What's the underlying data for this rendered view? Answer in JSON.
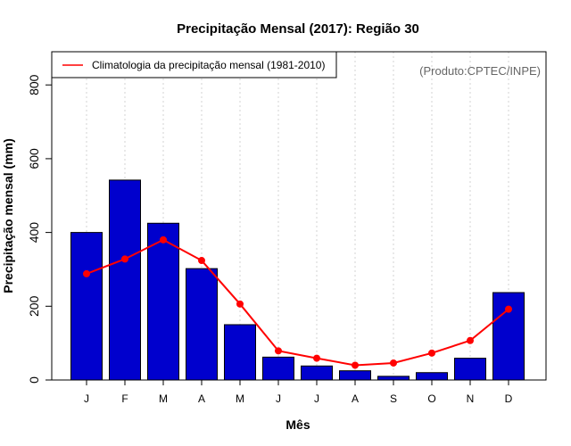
{
  "chart_data": {
    "type": "bar",
    "title": "Precipitação Mensal (2017): Região 30",
    "xlabel": "Mês",
    "ylabel": "Precipitação mensal (mm)",
    "ylim": [
      0,
      890
    ],
    "yticks": [
      0,
      200,
      400,
      600,
      800
    ],
    "categories": [
      "J",
      "F",
      "M",
      "A",
      "M",
      "J",
      "J",
      "A",
      "S",
      "O",
      "N",
      "D"
    ],
    "series": [
      {
        "name": "Precipitação mensal (2017)",
        "kind": "bar",
        "color": "#0000cd",
        "values": [
          400,
          542,
          425,
          302,
          150,
          62,
          38,
          25,
          10,
          20,
          59,
          237
        ]
      },
      {
        "name": "Climatologia da precipitação mensal (1981-2010)",
        "kind": "line",
        "color": "#ff0000",
        "values": [
          288,
          328,
          380,
          324,
          206,
          79,
          59,
          40,
          46,
          73,
          107,
          192
        ]
      }
    ],
    "legend": {
      "position": "top-left",
      "entries": [
        "Climatologia da precipitação mensal (1981-2010)"
      ]
    },
    "grid": {
      "vertical": true,
      "style": "dotted"
    },
    "annotation": "(Produto:CPTEC/INPE)"
  }
}
